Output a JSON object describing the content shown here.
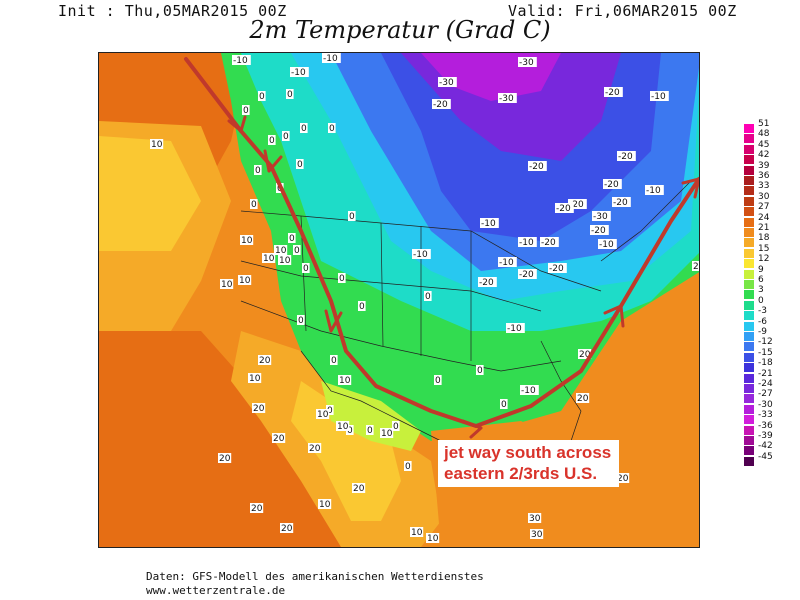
{
  "header": {
    "init": "Init : Thu,05MAR2015 00Z",
    "valid": "Valid: Fri,06MAR2015 00Z",
    "title": "2m Temperatur (Grad C)"
  },
  "map": {
    "temperature_labels": [
      "-10",
      "-10",
      "-10",
      "-30",
      "-30",
      "-20",
      "-30",
      "-20",
      "-10",
      "0",
      "0",
      "0",
      "0",
      "0",
      "0",
      "0",
      "0",
      "0",
      "10",
      "10",
      "0",
      "0",
      "-20",
      "-20",
      "-20",
      "-20",
      "-20",
      "-10",
      "-10",
      "-20",
      "-30",
      "-20",
      "-10",
      "0",
      "0",
      "0",
      "0",
      "0",
      "-10",
      "-10",
      "-20",
      "-20",
      "-20",
      "-10",
      "0",
      "0",
      "0",
      "0",
      "0",
      "0",
      "10",
      "10",
      "10",
      "10",
      "10",
      "-20",
      "-10",
      "-10",
      "0",
      "0",
      "0",
      "0",
      "0",
      "0",
      "20",
      "20",
      "20",
      "10",
      "10",
      "10",
      "20",
      "20",
      "20",
      "10",
      "10",
      "20",
      "20",
      "10",
      "10",
      "10",
      "20",
      "30",
      "30",
      "20",
      "10",
      "20",
      "20"
    ],
    "annotation": [
      "jet way south across",
      "eastern 2/3rds U.S."
    ]
  },
  "legend": {
    "ticks": [
      "51",
      "48",
      "45",
      "42",
      "39",
      "36",
      "33",
      "30",
      "27",
      "24",
      "21",
      "18",
      "15",
      "12",
      "9",
      "6",
      "3",
      "0",
      "-3",
      "-6",
      "-9",
      "-12",
      "-15",
      "-18",
      "-21",
      "-24",
      "-27",
      "-30",
      "-33",
      "-36",
      "-39",
      "-42",
      "-45"
    ],
    "colors": [
      "#ff00b4",
      "#e6008c",
      "#d7006e",
      "#c8004b",
      "#b4003c",
      "#aa1e1e",
      "#b42d19",
      "#be3c14",
      "#d25014",
      "#e66e14",
      "#f08c1e",
      "#f5aa28",
      "#fac832",
      "#fae632",
      "#c8f03c",
      "#78e646",
      "#32dc50",
      "#1edc8c",
      "#1edcc8",
      "#28c8f0",
      "#32a0f5",
      "#3c78f0",
      "#3c50e6",
      "#3c32dc",
      "#5a28dc",
      "#7828dc",
      "#9628dc",
      "#b41edc",
      "#d21edc",
      "#c814b4",
      "#a00a96",
      "#780078",
      "#500050"
    ]
  },
  "footer": {
    "line1": "Daten: GFS-Modell des amerikanischen Wetterdienstes",
    "line2": "www.wetterzentrale.de"
  }
}
